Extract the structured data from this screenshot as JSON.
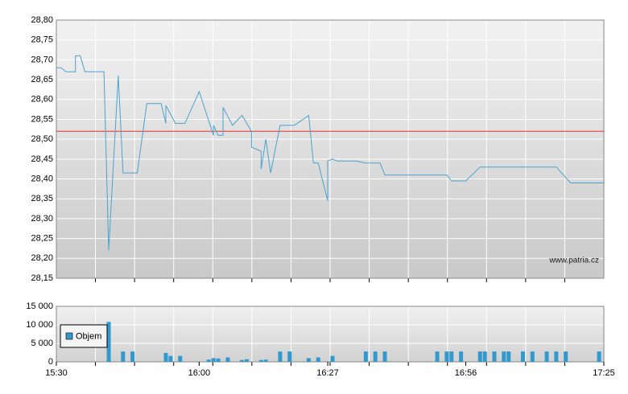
{
  "chart_data": [
    {
      "type": "line",
      "x": [
        "15:30",
        "15:31",
        "15:32",
        "15:34",
        "15:34",
        "15:35",
        "15:36",
        "15:40",
        "15:41",
        "15:43",
        "15:44",
        "15:47",
        "15:49",
        "15:52",
        "15:53",
        "15:53",
        "15:55",
        "15:57",
        "16:00",
        "16:03",
        "16:03",
        "16:04",
        "16:05",
        "16:05",
        "16:07",
        "16:09",
        "16:11",
        "16:11",
        "16:13",
        "16:13",
        "16:14",
        "16:15",
        "16:17",
        "16:20",
        "16:23",
        "16:24",
        "16:25",
        "16:27",
        "16:27",
        "16:28",
        "16:29",
        "16:33",
        "16:35",
        "16:38",
        "16:39",
        "16:52",
        "16:53",
        "16:56",
        "16:59",
        "17:15",
        "17:18",
        "17:25"
      ],
      "series": [
        {
          "color": "#4aa3cc",
          "values": [
            28.68,
            28.68,
            28.67,
            28.67,
            28.71,
            28.71,
            28.67,
            28.67,
            28.22,
            28.66,
            28.415,
            28.415,
            28.59,
            28.59,
            28.54,
            28.585,
            28.54,
            28.54,
            28.62,
            28.51,
            28.535,
            28.51,
            28.51,
            28.58,
            28.535,
            28.56,
            28.52,
            28.48,
            28.47,
            28.425,
            28.5,
            28.415,
            28.535,
            28.535,
            28.56,
            28.44,
            28.44,
            28.345,
            28.445,
            28.45,
            28.445,
            28.445,
            28.44,
            28.44,
            28.41,
            28.41,
            28.395,
            28.395,
            28.43,
            28.43,
            28.39,
            28.39
          ]
        }
      ],
      "reference_line": {
        "value": 28.52,
        "color": "#e03030"
      },
      "xlim": [
        "15:30",
        "17:25"
      ],
      "ylim": [
        28.15,
        28.8
      ],
      "yticks": [
        {
          "value": 28.15,
          "label": "28,15"
        },
        {
          "value": 28.2,
          "label": "28,20"
        },
        {
          "value": 28.25,
          "label": "28,25"
        },
        {
          "value": 28.3,
          "label": "28,30"
        },
        {
          "value": 28.35,
          "label": "28,35"
        },
        {
          "value": 28.4,
          "label": "28,40"
        },
        {
          "value": 28.45,
          "label": "28,45"
        },
        {
          "value": 28.5,
          "label": "28,50"
        },
        {
          "value": 28.55,
          "label": "28,55"
        },
        {
          "value": 28.6,
          "label": "28,60"
        },
        {
          "value": 28.65,
          "label": "28,65"
        },
        {
          "value": 28.7,
          "label": "28,70"
        },
        {
          "value": 28.75,
          "label": "28,75"
        },
        {
          "value": 28.8,
          "label": "28,80"
        }
      ],
      "grid": true,
      "watermark": "www.patria.cz"
    },
    {
      "type": "bar",
      "x": [
        "15:41",
        "15:44",
        "15:46",
        "15:53",
        "15:54",
        "15:56",
        "16:02",
        "16:03",
        "16:04",
        "16:06",
        "16:09",
        "16:10",
        "16:13",
        "16:14",
        "16:17",
        "16:19",
        "16:23",
        "16:25",
        "16:28",
        "16:35",
        "16:37",
        "16:39",
        "16:50",
        "16:52",
        "16:53",
        "16:55",
        "16:59",
        "17:00",
        "17:02",
        "17:04",
        "17:05",
        "17:08",
        "17:10",
        "17:13",
        "17:15",
        "17:17",
        "17:24"
      ],
      "series": [
        {
          "name": "Objem",
          "color": "#3399cc",
          "values": [
            10800,
            2800,
            2800,
            2400,
            1600,
            1600,
            600,
            1000,
            900,
            1200,
            500,
            700,
            500,
            600,
            2800,
            2800,
            1000,
            1200,
            1600,
            2800,
            2800,
            2800,
            2800,
            2800,
            2800,
            2800,
            2800,
            2800,
            2800,
            2800,
            2800,
            2800,
            2800,
            2800,
            2800,
            2800,
            2800
          ]
        }
      ],
      "xlim": [
        "15:30",
        "17:25"
      ],
      "xticks": [
        "15:30",
        "16:00",
        "16:27",
        "16:56",
        "17:25"
      ],
      "ylim": [
        0,
        15000
      ],
      "yticks": [
        0,
        {
          "value": 5000,
          "label": "5 000"
        },
        {
          "value": 10000,
          "label": "10 000"
        },
        {
          "value": 15000,
          "label": "15 000"
        }
      ],
      "grid": true,
      "legend": "top-left"
    }
  ]
}
